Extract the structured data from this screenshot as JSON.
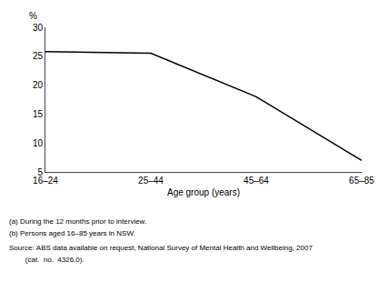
{
  "chart_data": {
    "type": "line",
    "categories": [
      "16–24",
      "25–44",
      "45–64",
      "65–85"
    ],
    "values": [
      25.8,
      25.5,
      18.0,
      7.0
    ],
    "color": "#000000",
    "xlabel": "Age group (years)",
    "ylabel": "%",
    "ylim": [
      5,
      30
    ],
    "yticks": [
      5,
      10,
      15,
      20,
      25,
      30
    ],
    "grid": false,
    "annotations": [
      "(a) During the 12 months prior to interview.",
      "(b) Persons aged 16–85 years in NSW.",
      "Source: ABS data available on request, National Survey of Mental Health and Wellbeing, 2007",
      "        (cat.  no.  4326.0)."
    ]
  }
}
